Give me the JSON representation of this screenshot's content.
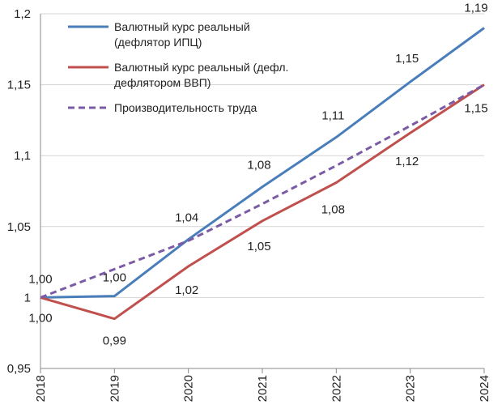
{
  "chart_data": {
    "type": "line",
    "x": [
      "2018",
      "2019",
      "2020",
      "2021",
      "2022",
      "2023",
      "2024"
    ],
    "ylim": [
      0.95,
      1.2
    ],
    "y_ticks": [
      "0,95",
      "1",
      "1,05",
      "1,1",
      "1,15",
      "1,2"
    ],
    "grid": true,
    "legend_position": "top-left",
    "series": [
      {
        "name_lines": [
          "Валютный курс реальный",
          "(дефлятор ИПЦ)"
        ],
        "color": "#4a7ebb",
        "dash": false,
        "values": [
          1.0,
          1.001,
          1.041,
          1.078,
          1.113,
          1.152,
          1.19
        ],
        "labels": [
          "1,00",
          "1,00",
          "1,04",
          "1,08",
          "1,11",
          "1,15",
          "1,19"
        ]
      },
      {
        "name_lines": [
          "Валютный курс реальный (дефл.",
          "дефлятором ВВП)"
        ],
        "color": "#c0504d",
        "dash": false,
        "values": [
          1.0,
          0.985,
          1.022,
          1.054,
          1.081,
          1.116,
          1.15
        ],
        "labels": [
          "1,00",
          "0,99",
          "1,02",
          "1,05",
          "1,08",
          "1,12",
          "1,15"
        ]
      },
      {
        "name_lines": [
          "Производительность труда"
        ],
        "color": "#7b5ba6",
        "dash": true,
        "values": [
          1.0,
          1.02,
          1.04,
          1.066,
          1.093,
          1.121,
          1.15
        ],
        "labels": []
      }
    ]
  }
}
